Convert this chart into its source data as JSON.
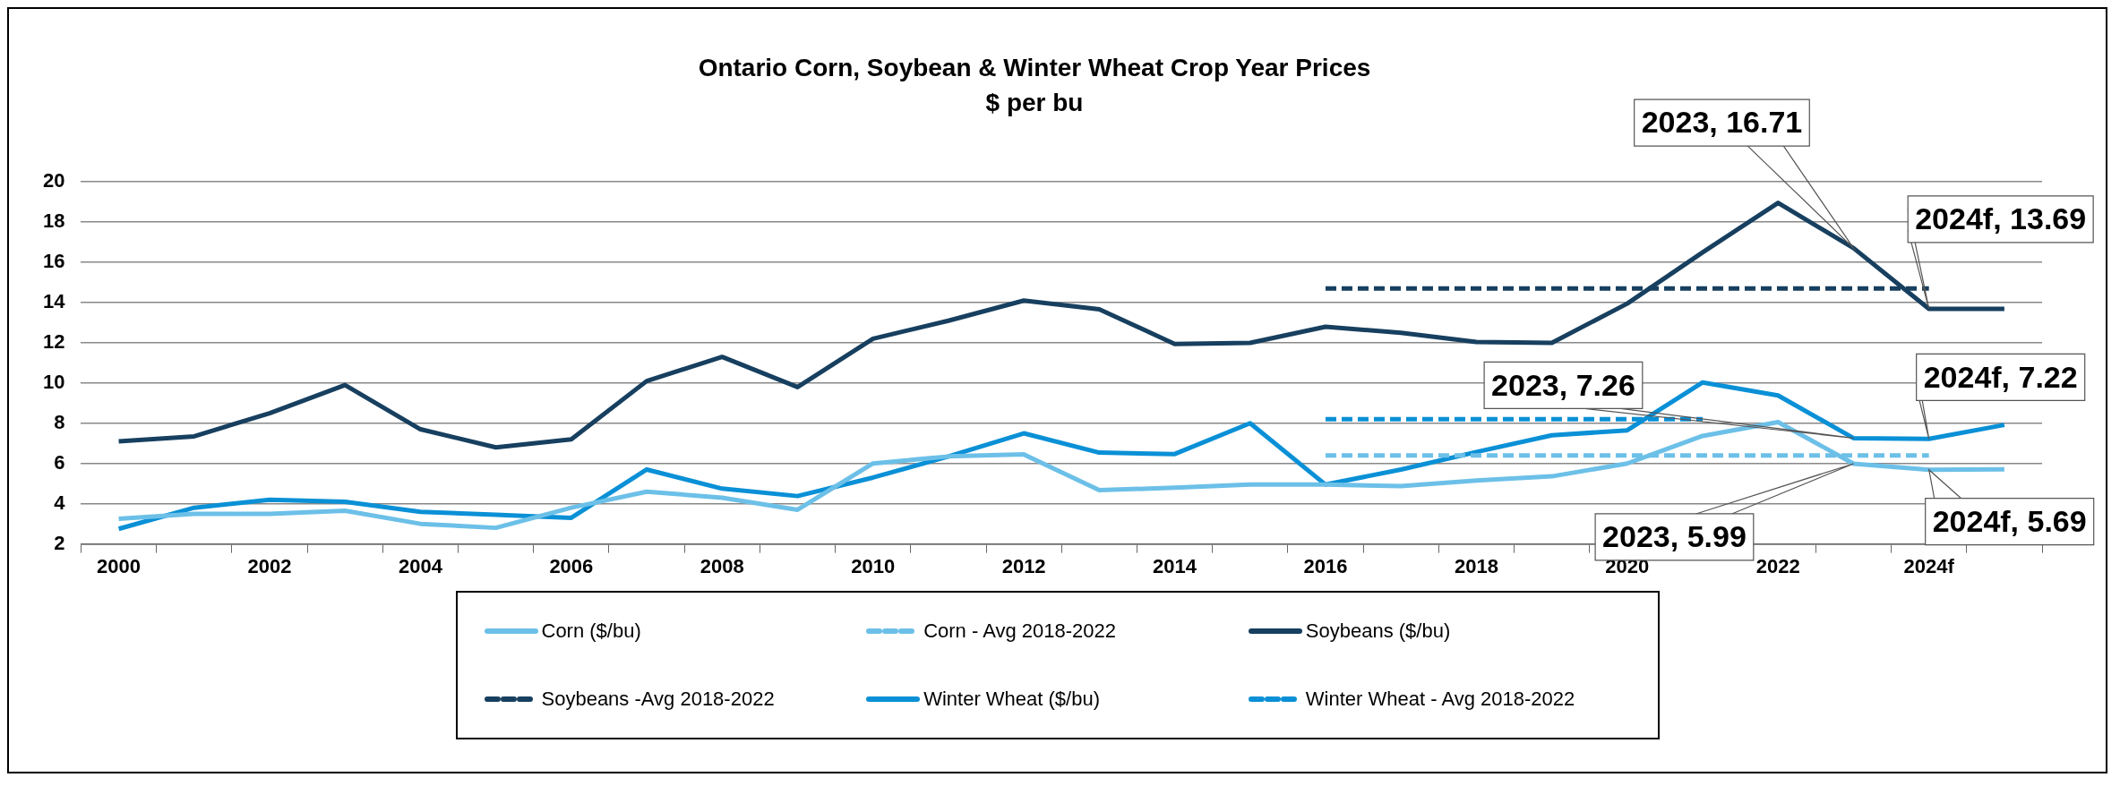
{
  "chart_data": {
    "type": "line",
    "title": "Ontario Corn, Soybean & Winter Wheat Crop Year Prices",
    "subtitle": "$ per bu",
    "categories": [
      "2000",
      null,
      "2002",
      null,
      "2004",
      null,
      "2006",
      null,
      "2008",
      null,
      "2010",
      null,
      "2012",
      null,
      "2014",
      null,
      "2016",
      null,
      "2018",
      null,
      "2020",
      null,
      "2022",
      null,
      "2024f",
      null
    ],
    "series": [
      {
        "name": "Corn ($/bu)",
        "color": "#6cc0e8",
        "line_style": "solid",
        "values": [
          3.25,
          3.5,
          3.5,
          3.65,
          3.0,
          2.8,
          3.8,
          4.6,
          4.3,
          3.7,
          6.0,
          6.35,
          6.45,
          4.67,
          4.8,
          4.95,
          4.95,
          4.88,
          5.15,
          5.36,
          6.0,
          7.37,
          8.06,
          5.99,
          5.69,
          5.71
        ]
      },
      {
        "name": "Corn - Avg 2018-2022",
        "color": "#6cc0e8",
        "line_style": "dashed",
        "values": [
          null,
          null,
          null,
          null,
          null,
          null,
          null,
          null,
          null,
          null,
          null,
          null,
          null,
          null,
          null,
          null,
          6.4,
          6.4,
          6.4,
          6.4,
          6.4,
          6.4,
          6.4,
          6.4,
          6.4,
          null
        ]
      },
      {
        "name": "Soybeans ($/bu)",
        "color": "#173f5f",
        "line_style": "solid",
        "values": [
          7.1,
          7.35,
          8.5,
          9.9,
          7.7,
          6.8,
          7.2,
          10.1,
          11.3,
          9.8,
          12.2,
          13.1,
          14.1,
          13.67,
          11.94,
          12.0,
          12.8,
          12.5,
          12.04,
          12.0,
          13.95,
          16.5,
          18.96,
          16.71,
          13.69,
          13.69
        ]
      },
      {
        "name": "Soybeans -Avg 2018-2022",
        "color": "#173f5f",
        "line_style": "dashed",
        "values": [
          null,
          null,
          null,
          null,
          null,
          null,
          null,
          null,
          null,
          null,
          null,
          null,
          null,
          null,
          null,
          null,
          14.7,
          14.7,
          14.7,
          14.7,
          14.7,
          14.7,
          14.7,
          14.7,
          14.7,
          null
        ]
      },
      {
        "name": "Winter Wheat ($/bu)",
        "color": "#0a90d6",
        "line_style": "solid",
        "values": [
          2.75,
          3.8,
          4.2,
          4.1,
          3.6,
          3.45,
          3.3,
          5.7,
          4.75,
          4.38,
          5.3,
          6.35,
          7.5,
          6.54,
          6.47,
          8.0,
          4.95,
          5.7,
          6.57,
          7.4,
          7.65,
          10.03,
          9.38,
          7.26,
          7.22,
          7.92
        ]
      },
      {
        "name": "Winter Wheat - Avg 2018-2022",
        "color": "#0a90d6",
        "line_style": "dashed",
        "values": [
          null,
          null,
          null,
          null,
          null,
          null,
          null,
          null,
          null,
          null,
          null,
          null,
          null,
          null,
          null,
          null,
          8.2,
          8.2,
          8.2,
          8.2,
          8.2,
          8.2,
          null,
          null,
          null,
          null
        ]
      }
    ],
    "ylim": [
      2,
      20
    ],
    "yticks": [
      2,
      4,
      6,
      8,
      10,
      12,
      14,
      16,
      18,
      20
    ],
    "grid": "y",
    "legend": "bottom",
    "marker": "none",
    "annotations": [
      "2023, 16.71",
      "2024f, 13.69",
      "2023, 7.26",
      "2024f, 7.22",
      "2023, 5.99",
      "2024f, 5.69"
    ]
  }
}
